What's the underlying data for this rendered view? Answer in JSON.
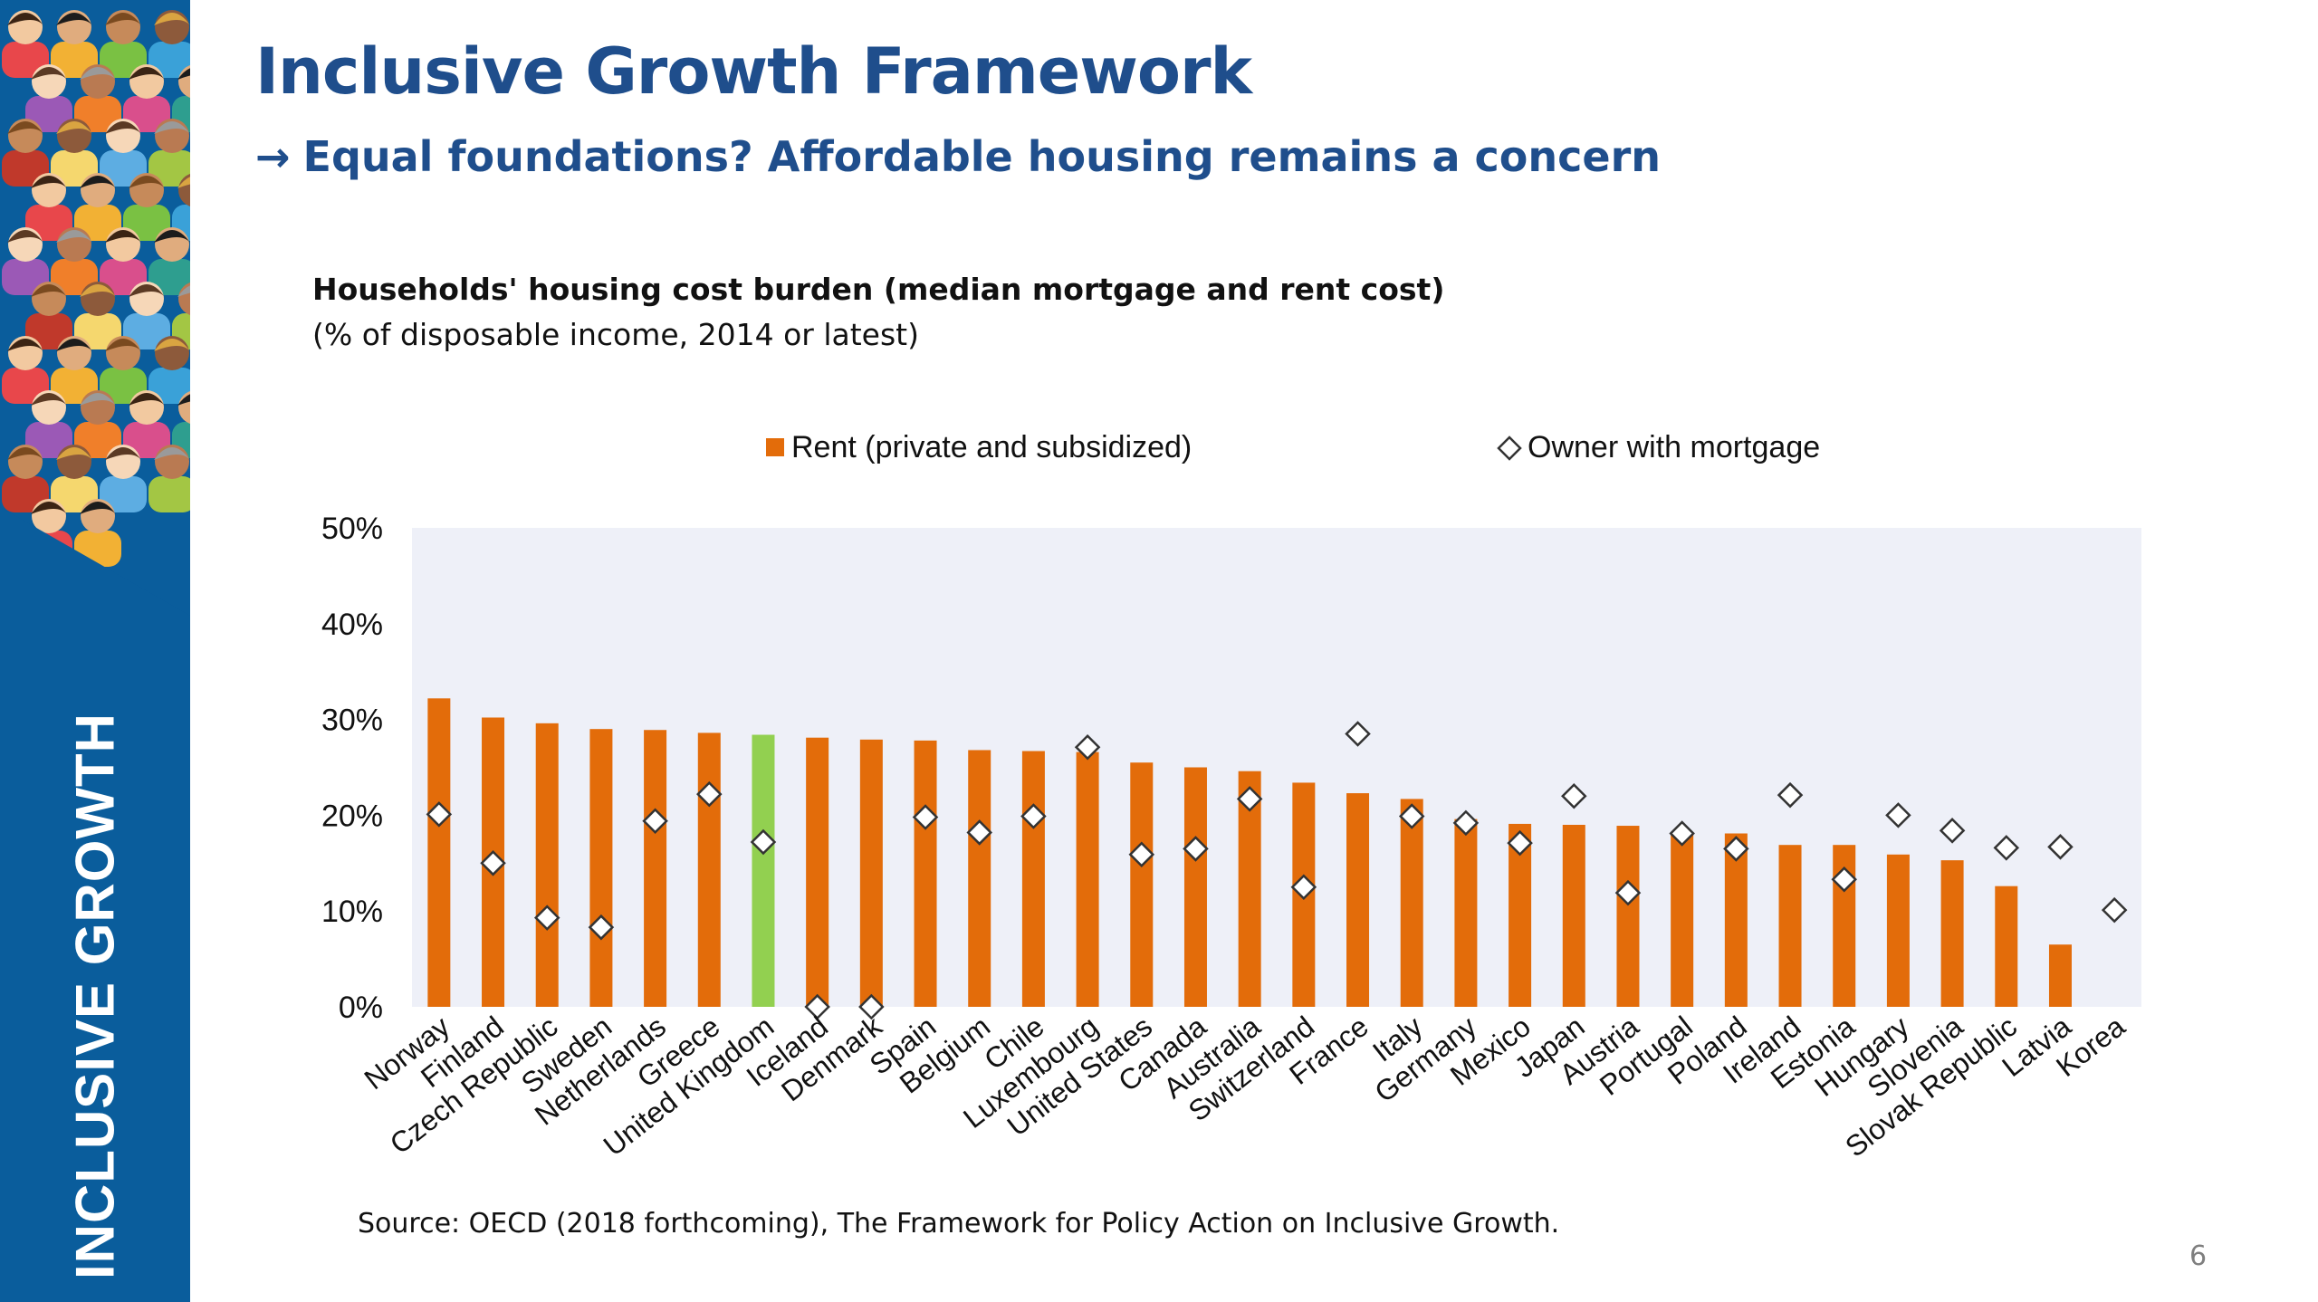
{
  "sidebar": {
    "label": "INCLUSIVE GROWTH"
  },
  "header": {
    "title": "Inclusive Growth Framework",
    "subtitle_arrow": "→",
    "subtitle": "Equal foundations? Affordable housing remains a concern"
  },
  "chart_data": {
    "type": "bar",
    "title": "Households' housing cost burden (median mortgage and rent cost)",
    "subtitle": "(% of disposable income, 2014 or latest)",
    "xlabel": "",
    "ylabel": "",
    "ylim": [
      0,
      50
    ],
    "yticks": [
      "0%",
      "10%",
      "20%",
      "30%",
      "40%",
      "50%"
    ],
    "grid": false,
    "legend_position": "top",
    "categories": [
      "Norway",
      "Finland",
      "Czech Republic",
      "Sweden",
      "Netherlands",
      "Greece",
      "United Kingdom",
      "Iceland",
      "Denmark",
      "Spain",
      "Belgium",
      "Chile",
      "Luxembourg",
      "United States",
      "Canada",
      "Australia",
      "Switzerland",
      "France",
      "Italy",
      "Germany",
      "Mexico",
      "Japan",
      "Austria",
      "Portugal",
      "Poland",
      "Ireland",
      "Estonia",
      "Hungary",
      "Slovenia",
      "Slovak Republic",
      "Latvia",
      "Korea"
    ],
    "series": [
      {
        "name": "Rent (private and subsidized)",
        "kind": "bar",
        "color": "#e36c0a",
        "highlight_color": "#92d050",
        "highlight_category": "United Kingdom",
        "values": [
          32.2,
          30.2,
          29.6,
          29.0,
          28.9,
          28.6,
          28.4,
          28.1,
          27.9,
          27.8,
          26.8,
          26.7,
          26.6,
          25.5,
          25.0,
          24.6,
          23.4,
          22.3,
          21.7,
          19.6,
          19.1,
          19.0,
          18.9,
          18.2,
          18.1,
          16.9,
          16.9,
          15.9,
          15.3,
          12.6,
          6.5,
          null
        ]
      },
      {
        "name": "Owner with mortgage",
        "kind": "marker",
        "marker": "diamond",
        "values": [
          20.1,
          15.0,
          9.3,
          8.3,
          19.4,
          22.2,
          17.2,
          0.0,
          0.0,
          19.8,
          18.2,
          19.9,
          27.1,
          15.9,
          16.5,
          21.7,
          12.5,
          28.5,
          19.9,
          19.2,
          17.1,
          22.0,
          11.9,
          18.1,
          16.5,
          22.1,
          13.3,
          20.0,
          18.4,
          16.6,
          16.7,
          10.1
        ]
      }
    ]
  },
  "footer": {
    "source": "Source: OECD (2018 forthcoming), The Framework for Policy Action on Inclusive Growth.",
    "page_number": "6"
  }
}
